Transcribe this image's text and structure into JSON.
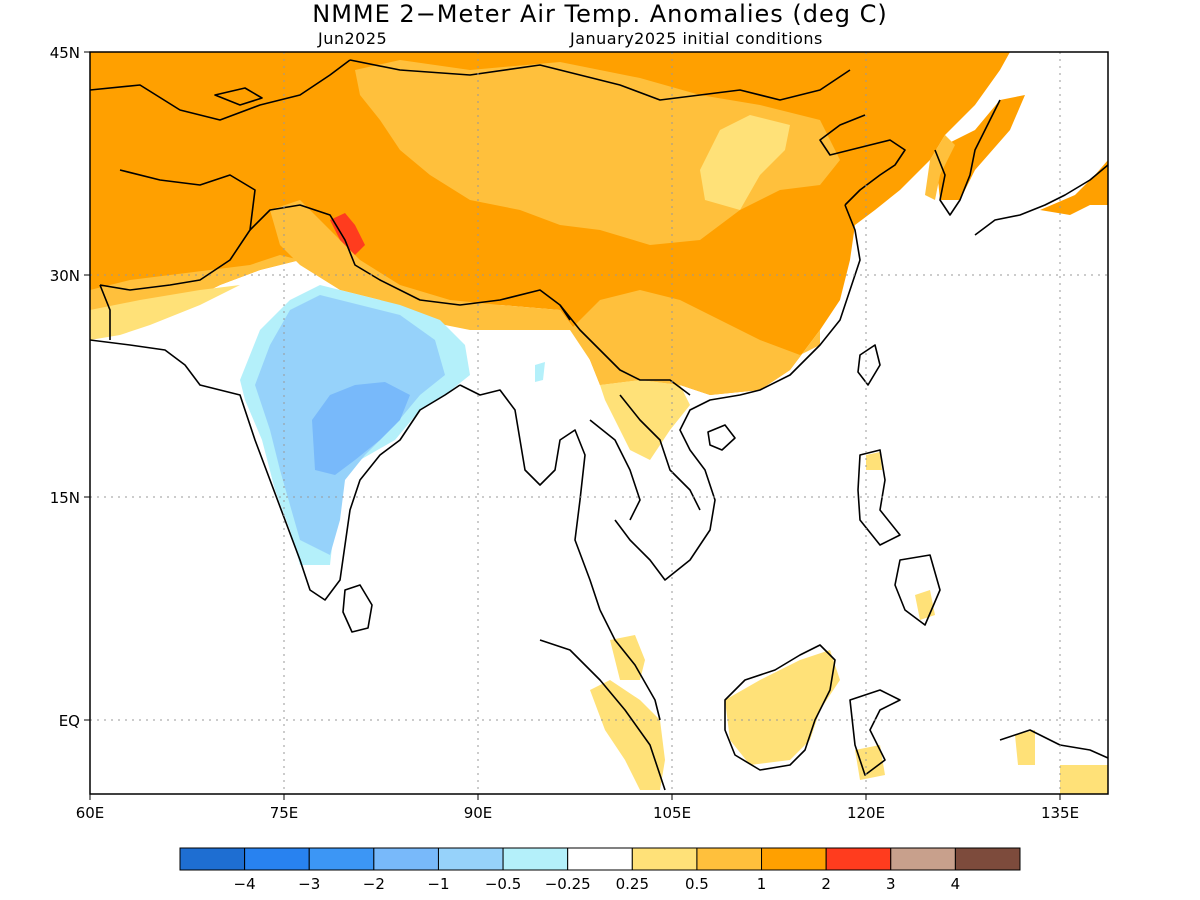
{
  "title": "NMME 2−Meter Air Temp. Anomalies (deg C)",
  "valid_month": "Jun2025",
  "init_label": "January2025 initial conditions",
  "lat_labels": [
    "45N",
    "30N",
    "15N",
    "EQ"
  ],
  "lon_labels": [
    "60E",
    "75E",
    "90E",
    "105E",
    "120E",
    "135E"
  ],
  "colorbar": {
    "bins": [
      {
        "color": "#1e6ed2"
      },
      {
        "color": "#2882f0"
      },
      {
        "color": "#3c96f5"
      },
      {
        "color": "#78b9fa"
      },
      {
        "color": "#96d2fa"
      },
      {
        "color": "#b4f0fa"
      },
      {
        "color": "#ffffff"
      },
      {
        "color": "#ffe178"
      },
      {
        "color": "#ffc03c"
      },
      {
        "color": "#ffa000"
      },
      {
        "color": "#ff3c1e"
      },
      {
        "color": "#c8a08c"
      },
      {
        "color": "#7d4b3c"
      }
    ],
    "labels": [
      "−4",
      "−3",
      "−2",
      "−1",
      "−0.5",
      "−0.25",
      "0.25",
      "0.5",
      "1",
      "2",
      "3",
      "4"
    ]
  },
  "map_colors": {
    "orange": "#ffa000",
    "light_orange": "#ffc03c",
    "yellow": "#ffe178",
    "red": "#ff3c1e",
    "light_blue": "#96d2fa",
    "mid_blue": "#78b9fa",
    "pale_cyan": "#b4f0fa"
  }
}
